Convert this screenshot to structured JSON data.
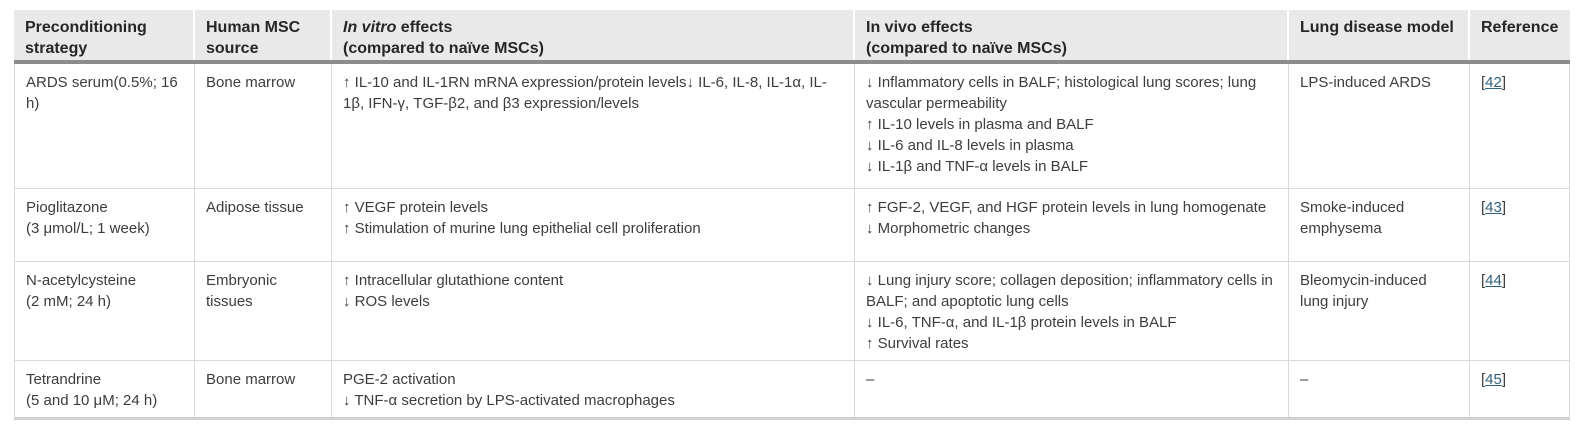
{
  "colors": {
    "header_bg": "#e9e9e9",
    "header_text": "#262626",
    "body_text": "#3d3d3d",
    "grid_line": "#d9d9d9",
    "header_rule": "#8c8c8c",
    "bottom_rule": "#d1d1d1",
    "link": "#31617f",
    "page_bg": "#ffffff"
  },
  "table": {
    "header": {
      "strategy": "Preconditioning\nstrategy",
      "source": "Human MSC\nsource",
      "invitro_italic": "In vitro",
      "invitro_rest": "effects",
      "invitro_sub": "(compared to naïve MSCs)",
      "invivo_line1": "In vivo effects",
      "invivo_sub": "(compared to naïve MSCs)",
      "model": "Lung disease model",
      "reference": "Reference"
    },
    "rows": [
      {
        "strategy": [
          "ARDS serum(0.5%; 16 h)"
        ],
        "source": "Bone marrow",
        "in_vitro": [
          "↑ IL-10 and IL-1RN mRNA expression/protein levels↓ IL-6, IL-8, IL-1α, IL-1β, IFN-γ, TGF-β2, and β3 expression/levels"
        ],
        "in_vivo": [
          "↓ Inflammatory cells in BALF; histological lung scores; lung vascular permeability",
          "↑ IL-10 levels in plasma and BALF",
          "↓ IL-6 and IL-8 levels in plasma",
          "↓ IL-1β and TNF-α levels in BALF"
        ],
        "model": "LPS-induced ARDS",
        "reference": {
          "open": "[",
          "label": "42",
          "close": "]"
        }
      },
      {
        "strategy": [
          "Pioglitazone",
          "(3 μmol/L; 1 week)"
        ],
        "source": "Adipose tissue",
        "in_vitro": [
          "↑ VEGF protein levels",
          "↑ Stimulation of murine lung epithelial cell proliferation"
        ],
        "in_vivo": [
          "↑ FGF-2, VEGF, and HGF protein levels in lung homogenate",
          "↓ Morphometric changes"
        ],
        "model": "Smoke-induced emphysema",
        "reference": {
          "open": "[",
          "label": "43",
          "close": "]"
        }
      },
      {
        "strategy": [
          "N-acetylcysteine",
          "(2 mM; 24 h)"
        ],
        "source": "Embryonic tissues",
        "in_vitro": [
          "↑ Intracellular glutathione content",
          "↓ ROS levels"
        ],
        "in_vivo": [
          "↓ Lung injury score; collagen deposition; inflammatory cells in BALF; and apoptotic lung cells",
          "↓ IL-6, TNF-α, and IL-1β protein levels in BALF",
          "↑ Survival rates"
        ],
        "model": "Bleomycin-induced lung injury",
        "reference": {
          "open": "[",
          "label": "44",
          "close": "]"
        }
      },
      {
        "strategy": [
          "Tetrandrine",
          "(5 and 10 μM; 24 h)"
        ],
        "source": "Bone marrow",
        "in_vitro": [
          "PGE-2 activation",
          "↓ TNF-α secretion by LPS-activated macrophages"
        ],
        "in_vivo": [
          "–"
        ],
        "model": "–",
        "reference": {
          "open": "[",
          "label": "45",
          "close": "]"
        }
      }
    ]
  }
}
